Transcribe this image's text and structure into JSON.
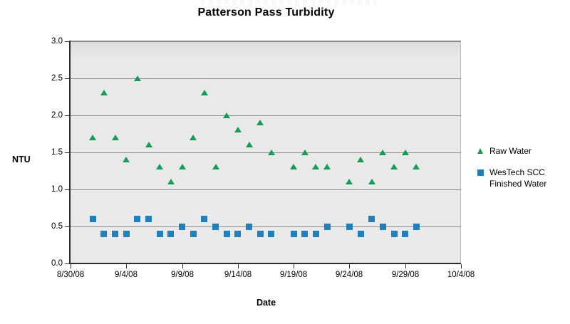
{
  "title": "Patterson Pass Turbidity",
  "axes": {
    "y_label": "NTU",
    "x_label": "Date",
    "y_ticks": [
      "3.0",
      "2.5",
      "2.0",
      "1.5",
      "1.0",
      "0.5",
      "0.0"
    ],
    "x_ticks": [
      "8/30/08",
      "9/4/08",
      "9/9/08",
      "9/14/08",
      "9/19/08",
      "9/24/08",
      "9/29/08",
      "10/4/08"
    ]
  },
  "legend": {
    "position": "right",
    "entries": [
      {
        "name": "Raw Water",
        "lines": [
          "Raw Water"
        ],
        "marker": "triangle",
        "color": "#119e52"
      },
      {
        "name": "WesTech SCC Finished Water",
        "lines": [
          "WesTech SCC",
          "Finished Water"
        ],
        "marker": "square",
        "color": "#1f7ebe"
      }
    ]
  },
  "colors": {
    "raw_water": "#119e52",
    "finished_water": "#1f7ebe",
    "plot_background": "#e9e9e9",
    "gridline": "#8c8c8c"
  },
  "chart_data": {
    "type": "scatter",
    "title": "Patterson Pass Turbidity",
    "xlabel": "Date",
    "ylabel": "NTU",
    "ylim": [
      0.0,
      3.0
    ],
    "y_tick_step": 0.5,
    "x_range": [
      "8/30/08",
      "10/4/08"
    ],
    "x_tick_labels": [
      "8/30/08",
      "9/4/08",
      "9/9/08",
      "9/14/08",
      "9/19/08",
      "9/24/08",
      "9/29/08",
      "10/4/08"
    ],
    "grid": true,
    "legend_position": "right",
    "series": [
      {
        "name": "Raw Water",
        "marker": "triangle",
        "color": "#119e52",
        "points": [
          {
            "date": "9/1/08",
            "ntu": 1.7
          },
          {
            "date": "9/2/08",
            "ntu": 2.3
          },
          {
            "date": "9/3/08",
            "ntu": 1.7
          },
          {
            "date": "9/4/08",
            "ntu": 1.4
          },
          {
            "date": "9/5/08",
            "ntu": 2.5
          },
          {
            "date": "9/6/08",
            "ntu": 1.6
          },
          {
            "date": "9/7/08",
            "ntu": 1.3
          },
          {
            "date": "9/8/08",
            "ntu": 1.1
          },
          {
            "date": "9/9/08",
            "ntu": 1.3
          },
          {
            "date": "9/10/08",
            "ntu": 1.7
          },
          {
            "date": "9/11/08",
            "ntu": 2.3
          },
          {
            "date": "9/12/08",
            "ntu": 1.3
          },
          {
            "date": "9/13/08",
            "ntu": 2.0
          },
          {
            "date": "9/14/08",
            "ntu": 1.8
          },
          {
            "date": "9/15/08",
            "ntu": 1.6
          },
          {
            "date": "9/16/08",
            "ntu": 1.9
          },
          {
            "date": "9/17/08",
            "ntu": 1.5
          },
          {
            "date": "9/19/08",
            "ntu": 1.3
          },
          {
            "date": "9/20/08",
            "ntu": 1.5
          },
          {
            "date": "9/21/08",
            "ntu": 1.3
          },
          {
            "date": "9/22/08",
            "ntu": 1.3
          },
          {
            "date": "9/24/08",
            "ntu": 1.1
          },
          {
            "date": "9/25/08",
            "ntu": 1.4
          },
          {
            "date": "9/26/08",
            "ntu": 1.1
          },
          {
            "date": "9/27/08",
            "ntu": 1.5
          },
          {
            "date": "9/28/08",
            "ntu": 1.3
          },
          {
            "date": "9/29/08",
            "ntu": 1.5
          },
          {
            "date": "9/30/08",
            "ntu": 1.3
          }
        ]
      },
      {
        "name": "WesTech SCC Finished Water",
        "marker": "square",
        "color": "#1f7ebe",
        "points": [
          {
            "date": "9/1/08",
            "ntu": 0.6
          },
          {
            "date": "9/2/08",
            "ntu": 0.4
          },
          {
            "date": "9/3/08",
            "ntu": 0.4
          },
          {
            "date": "9/4/08",
            "ntu": 0.4
          },
          {
            "date": "9/5/08",
            "ntu": 0.6
          },
          {
            "date": "9/6/08",
            "ntu": 0.6
          },
          {
            "date": "9/7/08",
            "ntu": 0.4
          },
          {
            "date": "9/8/08",
            "ntu": 0.4
          },
          {
            "date": "9/9/08",
            "ntu": 0.5
          },
          {
            "date": "9/10/08",
            "ntu": 0.4
          },
          {
            "date": "9/11/08",
            "ntu": 0.6
          },
          {
            "date": "9/12/08",
            "ntu": 0.5
          },
          {
            "date": "9/13/08",
            "ntu": 0.4
          },
          {
            "date": "9/14/08",
            "ntu": 0.4
          },
          {
            "date": "9/15/08",
            "ntu": 0.5
          },
          {
            "date": "9/16/08",
            "ntu": 0.4
          },
          {
            "date": "9/17/08",
            "ntu": 0.4
          },
          {
            "date": "9/19/08",
            "ntu": 0.4
          },
          {
            "date": "9/20/08",
            "ntu": 0.4
          },
          {
            "date": "9/21/08",
            "ntu": 0.4
          },
          {
            "date": "9/22/08",
            "ntu": 0.5
          },
          {
            "date": "9/24/08",
            "ntu": 0.5
          },
          {
            "date": "9/25/08",
            "ntu": 0.4
          },
          {
            "date": "9/26/08",
            "ntu": 0.6
          },
          {
            "date": "9/27/08",
            "ntu": 0.5
          },
          {
            "date": "9/28/08",
            "ntu": 0.4
          },
          {
            "date": "9/29/08",
            "ntu": 0.4
          },
          {
            "date": "9/30/08",
            "ntu": 0.5
          }
        ]
      }
    ]
  }
}
